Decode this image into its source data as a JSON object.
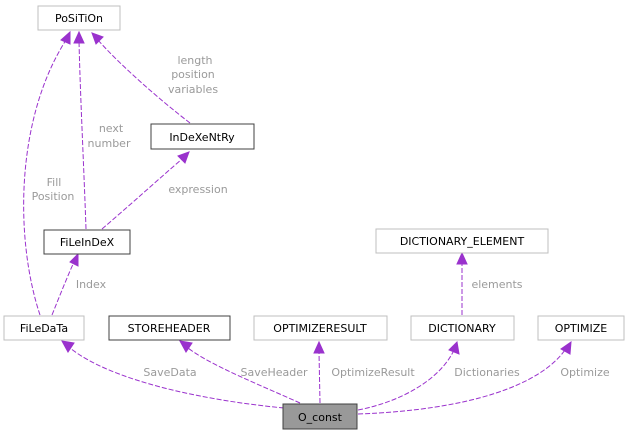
{
  "colors": {
    "edge": "#9a32cd",
    "label": "#9a9a9a",
    "border_dark": "#404040",
    "border_light": "#bfbfbf",
    "focus_fill": "#999999"
  },
  "nodes": {
    "position": "PoSiTiOn",
    "indexentry": "InDeXeNtRy",
    "fileindex": "FiLeInDeX",
    "filedata": "FiLeDaTa",
    "storeheader": "STOREHEADER",
    "optimizeresult": "OPTIMIZERESULT",
    "dictionary": "DICTIONARY",
    "dictionary_element": "DICTIONARY_ELEMENT",
    "optimize": "OPTIMIZE",
    "o_const": "O_const"
  },
  "edges": {
    "indexentry_position": [
      "length",
      "position",
      "variables"
    ],
    "fileindex_position": [
      "next",
      "number"
    ],
    "filedata_position": [
      "Fill",
      "Position"
    ],
    "fileindex_indexentry": [
      "expression"
    ],
    "filedata_fileindex": [
      "Index"
    ],
    "dictionary_element": [
      "elements"
    ],
    "o_const_filedata": [
      "SaveData"
    ],
    "o_const_storeheader": [
      "SaveHeader"
    ],
    "o_const_optimizeresult": [
      "OptimizeResult"
    ],
    "o_const_dictionary": [
      "Dictionaries"
    ],
    "o_const_optimize": [
      "Optimize"
    ]
  }
}
